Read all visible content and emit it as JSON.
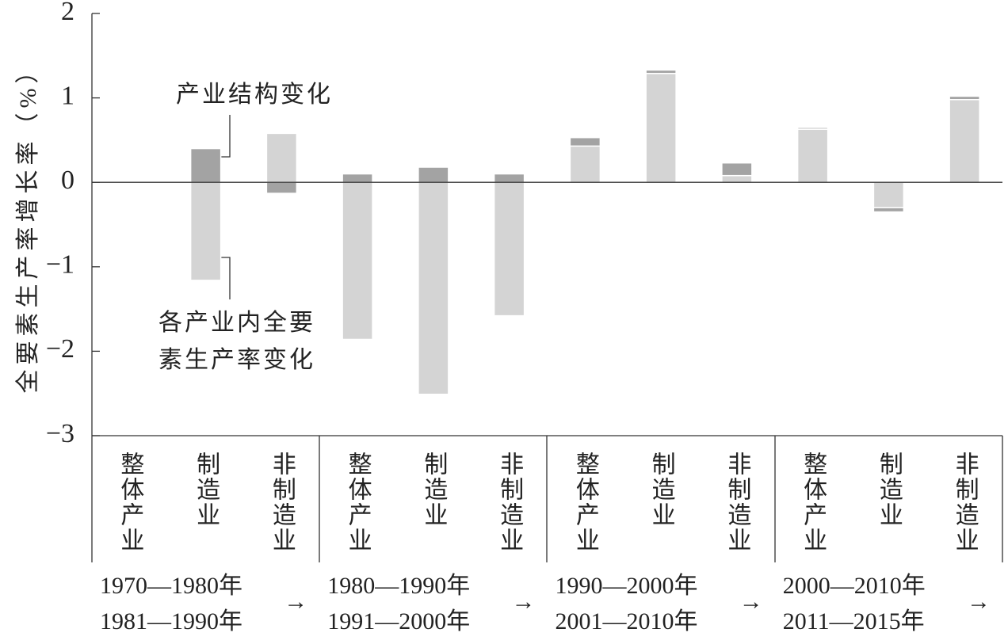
{
  "chart_data": {
    "type": "stacked_bar",
    "y_label": "全要素生产率增长率（%）",
    "categories": [
      "整体产业",
      "制造业",
      "非制造业",
      "整体产业",
      "制造业",
      "非制造业",
      "整体产业",
      "制造业",
      "非制造业",
      "整体产业",
      "制造业",
      "非制造业"
    ],
    "groups": [
      {
        "line1": "1970—1980年",
        "line2": "1981—1990年",
        "arrow": "→"
      },
      {
        "line1": "1980—1990年",
        "line2": "1991—2000年",
        "arrow": "→"
      },
      {
        "line1": "1990—2000年",
        "line2": "2001—2010年",
        "arrow": "→"
      },
      {
        "line1": "2000—2010年",
        "line2": "2011—2015年",
        "arrow": "→"
      }
    ],
    "series": [
      {
        "name": "各产业内全要素生产率变化",
        "name_lines": [
          "各产业内全要",
          "素生产率变化"
        ],
        "color": "#d4d4d4",
        "values": [
          -0.02,
          -1.16,
          0.58,
          -1.86,
          -2.51,
          -1.58,
          0.43,
          1.29,
          0.08,
          0.63,
          -0.3,
          0.98
        ]
      },
      {
        "name": "产业结构变化",
        "color": "#a3a3a3",
        "values": [
          0,
          0.4,
          -0.13,
          0.1,
          0.18,
          0.1,
          0.1,
          0.04,
          0.15,
          0.02,
          -0.05,
          0.04
        ]
      }
    ],
    "ylim": [
      -3,
      2
    ],
    "yticks": [
      {
        "value": -3,
        "label": "−3"
      },
      {
        "value": -2,
        "label": "−2"
      },
      {
        "value": -1,
        "label": "−1"
      },
      0,
      1,
      2
    ]
  }
}
